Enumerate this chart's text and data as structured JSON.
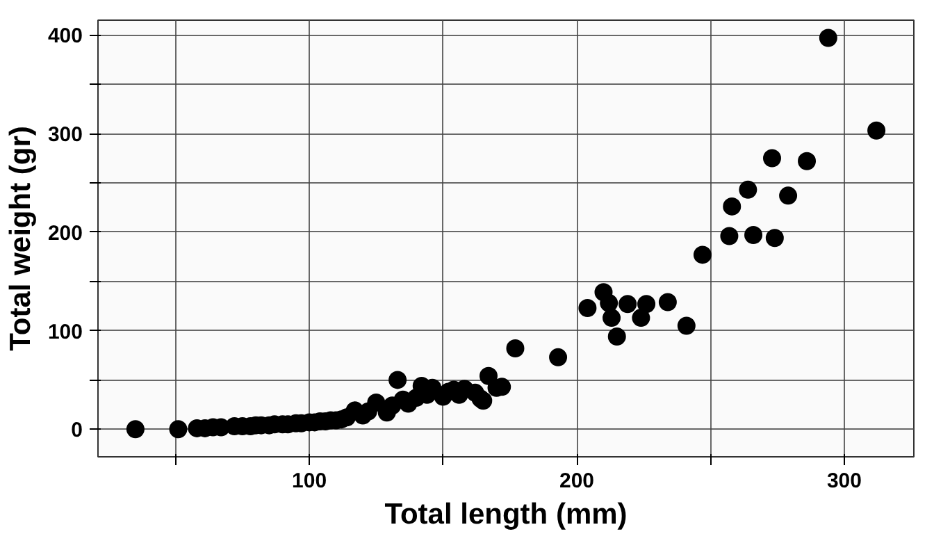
{
  "chart_data": {
    "type": "scatter",
    "xlabel": "Total length (mm)",
    "ylabel": "Total weight (gr)",
    "x": [
      35,
      51,
      58,
      61,
      64,
      67,
      72,
      75,
      78,
      80,
      82,
      85,
      87,
      90,
      92,
      95,
      97,
      100,
      102,
      104,
      106,
      108,
      110,
      112,
      114,
      117,
      120,
      122,
      125,
      129,
      131,
      133,
      135,
      137,
      140,
      142,
      144,
      146,
      150,
      152,
      154,
      156,
      158,
      162,
      164,
      165,
      167,
      170,
      172,
      177,
      193,
      204,
      210,
      212,
      213,
      215,
      219,
      224,
      226,
      234,
      241,
      247,
      257,
      258,
      264,
      266,
      274,
      273,
      286,
      279,
      294,
      312
    ],
    "values": [
      0,
      0,
      1,
      1,
      2,
      2,
      3,
      3,
      3,
      4,
      4,
      4,
      5,
      5,
      5,
      6,
      6,
      7,
      7,
      8,
      8,
      9,
      9,
      10,
      12,
      19,
      14,
      18,
      27,
      17,
      24,
      50,
      30,
      26,
      32,
      44,
      35,
      42,
      33,
      38,
      40,
      35,
      41,
      37,
      31,
      29,
      54,
      42,
      43,
      82,
      73,
      123,
      139,
      128,
      113,
      94,
      127,
      113,
      127,
      129,
      105,
      177,
      196,
      226,
      243,
      197,
      194,
      275,
      272,
      237,
      397,
      303
    ],
    "color": "#000000",
    "marker": "circle",
    "xlim": [
      21,
      326
    ],
    "ylim": [
      -28,
      415
    ],
    "xticks": [
      {
        "value": 50,
        "label": null
      },
      100,
      {
        "value": 150,
        "label": null
      },
      200,
      {
        "value": 250,
        "label": null
      },
      300
    ],
    "yticks": [
      0,
      {
        "value": 50,
        "label": null
      },
      100,
      {
        "value": 150,
        "label": null
      },
      200,
      {
        "value": 250,
        "label": null
      },
      300,
      {
        "value": 350,
        "label": null
      },
      400
    ],
    "grid": true
  }
}
